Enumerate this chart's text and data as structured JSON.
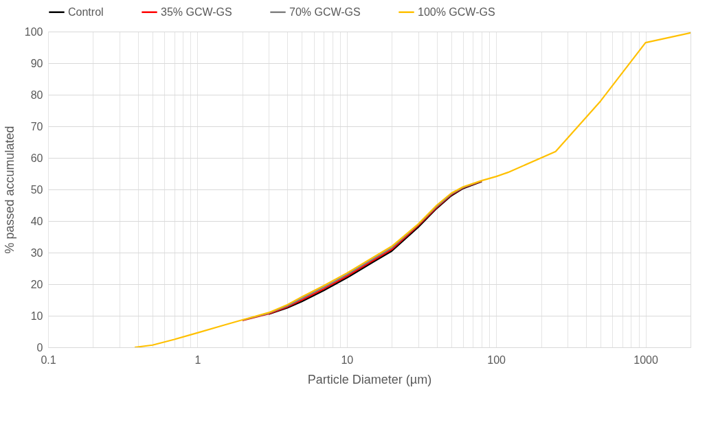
{
  "chart_data": {
    "type": "line",
    "xlabel": "Particle Diameter (µm)",
    "ylabel": "% passed accumulated",
    "log": "x",
    "grid": true,
    "legend": "top",
    "marker": "none",
    "line_style": "solid",
    "x": [
      0.38,
      0.5,
      0.7,
      1,
      1.5,
      2,
      3,
      4,
      5,
      7,
      10,
      15,
      20,
      30,
      40,
      50,
      60,
      80,
      100,
      120,
      250,
      500,
      1000,
      2000
    ],
    "series": [
      {
        "name": "Control",
        "color": "#000000",
        "values": [
          null,
          null,
          null,
          null,
          null,
          null,
          10.5,
          12.5,
          14.5,
          18,
          22,
          27,
          30.5,
          38,
          44,
          48,
          50.3,
          52.5,
          null,
          null,
          null,
          null,
          null,
          null
        ]
      },
      {
        "name": "35% GCW-GS",
        "color": "#ff0000",
        "values": [
          null,
          null,
          null,
          null,
          null,
          8.5,
          10.6,
          12.8,
          15,
          18.5,
          22.5,
          27.5,
          31,
          38.5,
          44.3,
          48.3,
          50.5,
          52.6,
          null,
          null,
          null,
          null,
          null,
          null
        ]
      },
      {
        "name": "70% GCW-GS",
        "color": "#808080",
        "values": [
          null,
          null,
          null,
          null,
          null,
          8.6,
          10.8,
          13.1,
          15.5,
          19,
          23,
          28,
          31.5,
          38.8,
          44.6,
          48.5,
          50.6,
          52.7,
          null,
          null,
          null,
          null,
          null,
          null
        ]
      },
      {
        "name": "100% GCW-GS",
        "color": "#ffc000",
        "values": [
          0,
          0.7,
          2.5,
          4.6,
          7,
          8.7,
          11,
          13.5,
          16,
          19.5,
          23.5,
          28.5,
          32,
          39,
          45,
          48.8,
          50.8,
          52.8,
          54.1,
          55.4,
          62,
          78,
          96.5,
          99.6
        ]
      }
    ],
    "xlim": [
      0.1,
      2000
    ],
    "xticks": [
      0.1,
      {
        "value": 0.2,
        "label": null
      },
      {
        "value": 0.3,
        "label": null
      },
      {
        "value": 0.4,
        "label": null
      },
      {
        "value": 0.5,
        "label": null
      },
      {
        "value": 0.6,
        "label": null
      },
      {
        "value": 0.7,
        "label": null
      },
      {
        "value": 0.8,
        "label": null
      },
      {
        "value": 0.9,
        "label": null
      },
      1,
      {
        "value": 2,
        "label": null
      },
      {
        "value": 3,
        "label": null
      },
      {
        "value": 4,
        "label": null
      },
      {
        "value": 5,
        "label": null
      },
      {
        "value": 6,
        "label": null
      },
      {
        "value": 7,
        "label": null
      },
      {
        "value": 8,
        "label": null
      },
      {
        "value": 9,
        "label": null
      },
      10,
      {
        "value": 20,
        "label": null
      },
      {
        "value": 30,
        "label": null
      },
      {
        "value": 40,
        "label": null
      },
      {
        "value": 50,
        "label": null
      },
      {
        "value": 60,
        "label": null
      },
      {
        "value": 70,
        "label": null
      },
      {
        "value": 80,
        "label": null
      },
      {
        "value": 90,
        "label": null
      },
      100,
      {
        "value": 200,
        "label": null
      },
      {
        "value": 300,
        "label": null
      },
      {
        "value": 400,
        "label": null
      },
      {
        "value": 500,
        "label": null
      },
      {
        "value": 600,
        "label": null
      },
      {
        "value": 700,
        "label": null
      },
      {
        "value": 800,
        "label": null
      },
      {
        "value": 900,
        "label": null
      },
      1000
    ],
    "ylim": [
      0,
      100
    ],
    "yticks": [
      0,
      10,
      20,
      30,
      40,
      50,
      60,
      70,
      80,
      90,
      100
    ]
  }
}
